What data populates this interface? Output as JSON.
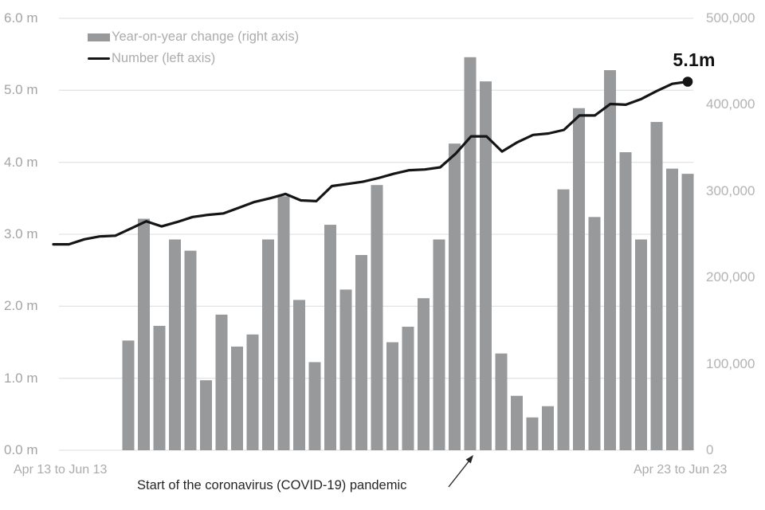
{
  "legend": {
    "items": [
      {
        "label": "Year-on-year change (right axis)",
        "swatch": "bar",
        "color": "#97999b"
      },
      {
        "label": "Number (left axis)",
        "swatch": "line",
        "color": "#151515"
      }
    ]
  },
  "left_axis": {
    "ticks": [
      "6.0 m",
      "5.0 m",
      "4.0 m",
      "3.0 m",
      "2.0 m",
      "1.0 m",
      "0.0 m"
    ]
  },
  "right_axis": {
    "ticks": [
      "500,000",
      "400,000",
      "300,000",
      "200,000",
      "100,000",
      "0"
    ]
  },
  "x_axis": {
    "left_label": "Apr 13 to Jun 13",
    "right_label": "Apr 23 to Jun 23"
  },
  "annotation": {
    "text": "Start of the coronavirus (COVID-19) pandemic"
  },
  "end_label": {
    "text": "5.1m"
  },
  "colors": {
    "bar": "#97999b",
    "line": "#151515",
    "grid": "#e3e4e5",
    "left_axis_text": "#a2a4a6",
    "right_axis_text": "#b1b3b5",
    "annotation_text": "#262626"
  },
  "chart_data": {
    "type": "combo (bar + line, dual axis)",
    "title": "",
    "x": {
      "unit": "rolling quarterly periods",
      "first_label_shown": "Apr 13 to Jun 13",
      "last_label_shown": "Apr 23 to Jun 23",
      "note": "only the first and last period labels are shown on the x-axis"
    },
    "left_axis": {
      "range": [
        0,
        6000000
      ],
      "tick_step": 1000000,
      "tick_format": "X.X m"
    },
    "right_axis": {
      "range": [
        0,
        500000
      ],
      "tick_step": 100000,
      "tick_format": "XXX,000"
    },
    "grid": "horizontal gridlines at each left-axis tick",
    "legend_position": "top-left inside plot",
    "series": [
      {
        "name": "Year-on-year change (right axis)",
        "type": "bar",
        "axis": "right",
        "color": "#97999b",
        "first_period": "approx Apr–Jun 2014 (four periods after line start)",
        "values": [
          127000,
          268000,
          144000,
          244000,
          231000,
          81000,
          157000,
          120000,
          134000,
          244000,
          294000,
          174000,
          102000,
          261000,
          186000,
          226000,
          307000,
          125000,
          143000,
          176000,
          244000,
          355000,
          455000,
          427000,
          112000,
          63000,
          38000,
          51000,
          302000,
          396000,
          270000,
          440000,
          345000,
          244000,
          380000,
          326000,
          320000
        ]
      },
      {
        "name": "Number (left axis)",
        "type": "line",
        "axis": "left",
        "color": "#151515",
        "end_point_label": "5.1m",
        "end_point_marker": "filled dot",
        "values_millions": [
          2.86,
          2.86,
          2.93,
          2.97,
          2.98,
          3.08,
          3.18,
          3.11,
          3.17,
          3.24,
          3.27,
          3.29,
          3.37,
          3.45,
          3.5,
          3.56,
          3.47,
          3.46,
          3.67,
          3.7,
          3.73,
          3.78,
          3.84,
          3.89,
          3.9,
          3.93,
          4.12,
          4.36,
          4.36,
          4.15,
          4.28,
          4.38,
          4.4,
          4.45,
          4.65,
          4.65,
          4.81,
          4.8,
          4.88,
          4.99,
          5.09,
          5.12
        ]
      }
    ],
    "annotations": [
      {
        "text": "Start of the coronavirus (COVID-19) pandemic",
        "arrow_points_to": "x-axis below the tallest bar (early-2020 period)"
      },
      {
        "text": "5.1m",
        "position": "above final line point"
      }
    ]
  }
}
